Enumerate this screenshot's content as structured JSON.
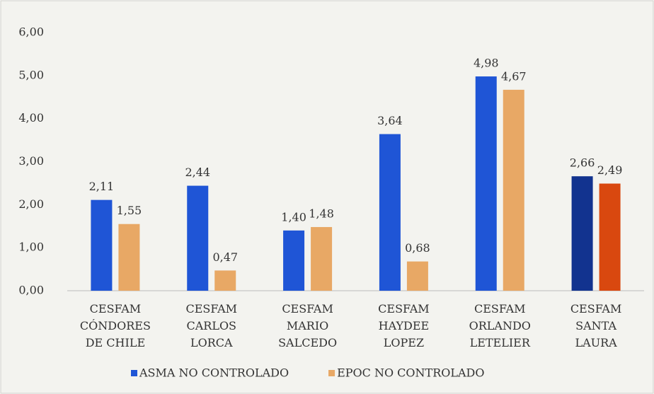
{
  "chart_data": {
    "type": "bar",
    "categories": [
      "CESFAM\nCÓNDORES\nDE CHILE",
      "CESFAM\nCARLOS\nLORCA",
      "CESFAM\nMARIO\nSALCEDO",
      "CESFAM\nHAYDEE\nLOPEZ",
      "CESFAM\nORLANDO\nLETELIER",
      "CESFAM\nSANTA\nLAURA"
    ],
    "series": [
      {
        "name": "ASMA NO CONTROLADO",
        "color": "#1f55d6",
        "colors": [
          "#1f55d6",
          "#1f55d6",
          "#1f55d6",
          "#1f55d6",
          "#1f55d6",
          "#12338f"
        ],
        "values": [
          2.11,
          2.44,
          1.4,
          3.64,
          4.98,
          2.66
        ],
        "value_labels": [
          "2,11",
          "2,44",
          "1,40",
          "3,64",
          "4,98",
          "2,66"
        ]
      },
      {
        "name": "EPOC NO CONTROLADO",
        "color": "#e8a865",
        "colors": [
          "#e8a865",
          "#e8a865",
          "#e8a865",
          "#e8a865",
          "#e8a865",
          "#d9480f"
        ],
        "values": [
          1.55,
          0.47,
          1.48,
          0.68,
          4.67,
          2.49
        ],
        "value_labels": [
          "1,55",
          "0,47",
          "1,48",
          "0,68",
          "4,67",
          "2,49"
        ]
      }
    ],
    "ylim": [
      0,
      6
    ],
    "yticks": [
      {
        "value": 0,
        "label": "0,00"
      },
      {
        "value": 1,
        "label": "1,00"
      },
      {
        "value": 2,
        "label": "2,00"
      },
      {
        "value": 3,
        "label": "3,00"
      },
      {
        "value": 4,
        "label": "4,00"
      },
      {
        "value": 5,
        "label": "5,00"
      },
      {
        "value": 6,
        "label": "6,00"
      }
    ],
    "grid": false,
    "legend": "bottom"
  }
}
